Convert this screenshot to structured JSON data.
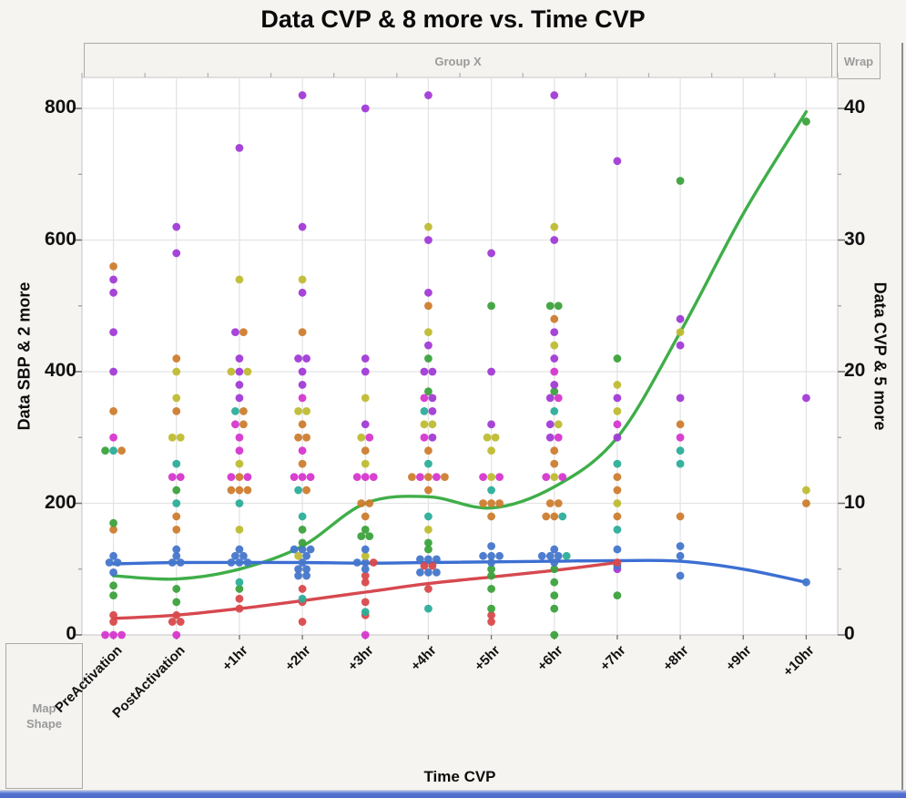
{
  "zones": {
    "group_x": "Group X",
    "wrap": "Wrap",
    "map_shape": "Map Shape"
  },
  "chart_data": {
    "type": "scatter",
    "title": "Data CVP & 8 more vs. Time CVP",
    "x_axis": {
      "label": "Time CVP",
      "categories": [
        "PreActivation",
        "PostActivation",
        "+1hr",
        "+2hr",
        "+3hr",
        "+4hr",
        "+5hr",
        "+6hr",
        "+7hr",
        "+8hr",
        "+9hr",
        "+10hr"
      ]
    },
    "y_left_axis": {
      "label": "Data SBP & 2 more",
      "ticks": [
        0,
        200,
        400,
        600,
        800
      ],
      "minor_ticks": [
        100,
        300,
        500,
        700
      ],
      "range": [
        0,
        856
      ]
    },
    "y_right_axis": {
      "label": "Data CVP & 5 more",
      "ticks": [
        0,
        10,
        20,
        30,
        40
      ],
      "minor_ticks": [
        5,
        15,
        25,
        35
      ],
      "range": [
        0,
        42.8
      ],
      "left_units_per_right_unit": 20
    },
    "grid": "major",
    "legend_position": "none",
    "palette": {
      "blue": "#4476cb",
      "green": "#3ca23c",
      "teal": "#2bae9a",
      "red": "#d9494b",
      "orange": "#ce7d2f",
      "yellow": "#bfbc33",
      "purple": "#a13bd6",
      "magenta": "#d636ce"
    },
    "line_palette": {
      "green": "#3fae49",
      "blue": "#3c6fd2",
      "red": "#d6494f"
    },
    "points_by_category": {
      "PreActivation": [
        [
          "orange",
          560
        ],
        [
          "purple",
          540
        ],
        [
          "purple",
          520
        ],
        [
          "purple",
          460
        ],
        [
          "purple",
          400
        ],
        [
          "orange",
          340
        ],
        [
          "magenta",
          300
        ],
        [
          "green",
          280
        ],
        [
          "teal",
          280
        ],
        [
          "orange",
          280
        ],
        [
          "green",
          170
        ],
        [
          "orange",
          160
        ],
        [
          "blue",
          120
        ],
        [
          "blue",
          110
        ],
        [
          "blue",
          110
        ],
        [
          "blue",
          95
        ],
        [
          "green",
          75
        ],
        [
          "green",
          60
        ],
        [
          "red",
          30
        ],
        [
          "red",
          20
        ],
        [
          "magenta",
          0
        ],
        [
          "magenta",
          0
        ],
        [
          "magenta",
          0
        ]
      ],
      "PostActivation": [
        [
          "purple",
          620
        ],
        [
          "purple",
          580
        ],
        [
          "orange",
          420
        ],
        [
          "yellow",
          400
        ],
        [
          "yellow",
          360
        ],
        [
          "orange",
          340
        ],
        [
          "yellow",
          300
        ],
        [
          "yellow",
          300
        ],
        [
          "teal",
          260
        ],
        [
          "magenta",
          240
        ],
        [
          "magenta",
          240
        ],
        [
          "green",
          220
        ],
        [
          "teal",
          200
        ],
        [
          "orange",
          180
        ],
        [
          "orange",
          160
        ],
        [
          "blue",
          130
        ],
        [
          "blue",
          120
        ],
        [
          "blue",
          110
        ],
        [
          "blue",
          110
        ],
        [
          "green",
          70
        ],
        [
          "green",
          50
        ],
        [
          "red",
          30
        ],
        [
          "red",
          20
        ],
        [
          "red",
          20
        ],
        [
          "magenta",
          0
        ]
      ],
      "+1hr": [
        [
          "purple",
          740
        ],
        [
          "yellow",
          540
        ],
        [
          "purple",
          460
        ],
        [
          "orange",
          460
        ],
        [
          "purple",
          420
        ],
        [
          "yellow",
          400
        ],
        [
          "purple",
          400
        ],
        [
          "yellow",
          400
        ],
        [
          "purple",
          380
        ],
        [
          "purple",
          360
        ],
        [
          "teal",
          340
        ],
        [
          "orange",
          340
        ],
        [
          "magenta",
          320
        ],
        [
          "orange",
          320
        ],
        [
          "magenta",
          300
        ],
        [
          "magenta",
          280
        ],
        [
          "yellow",
          260
        ],
        [
          "magenta",
          240
        ],
        [
          "orange",
          240
        ],
        [
          "magenta",
          240
        ],
        [
          "orange",
          220
        ],
        [
          "orange",
          220
        ],
        [
          "orange",
          220
        ],
        [
          "teal",
          200
        ],
        [
          "yellow",
          160
        ],
        [
          "blue",
          130
        ],
        [
          "blue",
          120
        ],
        [
          "blue",
          120
        ],
        [
          "blue",
          110
        ],
        [
          "blue",
          110
        ],
        [
          "blue",
          110
        ],
        [
          "teal",
          80
        ],
        [
          "green",
          70
        ],
        [
          "red",
          55
        ],
        [
          "red",
          40
        ]
      ],
      "+2hr": [
        [
          "purple",
          820
        ],
        [
          "purple",
          620
        ],
        [
          "yellow",
          540
        ],
        [
          "purple",
          520
        ],
        [
          "orange",
          460
        ],
        [
          "purple",
          420
        ],
        [
          "purple",
          420
        ],
        [
          "purple",
          400
        ],
        [
          "purple",
          380
        ],
        [
          "magenta",
          360
        ],
        [
          "yellow",
          340
        ],
        [
          "yellow",
          340
        ],
        [
          "orange",
          320
        ],
        [
          "orange",
          300
        ],
        [
          "orange",
          300
        ],
        [
          "magenta",
          280
        ],
        [
          "orange",
          260
        ],
        [
          "magenta",
          240
        ],
        [
          "magenta",
          240
        ],
        [
          "magenta",
          240
        ],
        [
          "teal",
          220
        ],
        [
          "orange",
          220
        ],
        [
          "teal",
          180
        ],
        [
          "green",
          160
        ],
        [
          "green",
          140
        ],
        [
          "blue",
          130
        ],
        [
          "blue",
          130
        ],
        [
          "blue",
          130
        ],
        [
          "yellow",
          120
        ],
        [
          "blue",
          120
        ],
        [
          "blue",
          110
        ],
        [
          "blue",
          100
        ],
        [
          "blue",
          100
        ],
        [
          "blue",
          90
        ],
        [
          "blue",
          90
        ],
        [
          "red",
          70
        ],
        [
          "teal",
          55
        ],
        [
          "red",
          50
        ],
        [
          "red",
          20
        ]
      ],
      "+3hr": [
        [
          "purple",
          800
        ],
        [
          "purple",
          420
        ],
        [
          "purple",
          400
        ],
        [
          "yellow",
          360
        ],
        [
          "purple",
          320
        ],
        [
          "yellow",
          300
        ],
        [
          "magenta",
          300
        ],
        [
          "orange",
          280
        ],
        [
          "yellow",
          260
        ],
        [
          "magenta",
          240
        ],
        [
          "magenta",
          240
        ],
        [
          "magenta",
          240
        ],
        [
          "orange",
          200
        ],
        [
          "orange",
          200
        ],
        [
          "orange",
          180
        ],
        [
          "green",
          160
        ],
        [
          "green",
          150
        ],
        [
          "green",
          150
        ],
        [
          "blue",
          130
        ],
        [
          "yellow",
          120
        ],
        [
          "blue",
          110
        ],
        [
          "blue",
          110
        ],
        [
          "red",
          110
        ],
        [
          "blue",
          100
        ],
        [
          "red",
          90
        ],
        [
          "red",
          80
        ],
        [
          "red",
          50
        ],
        [
          "teal",
          35
        ],
        [
          "red",
          30
        ],
        [
          "magenta",
          0
        ]
      ],
      "+4hr": [
        [
          "purple",
          820
        ],
        [
          "yellow",
          620
        ],
        [
          "purple",
          600
        ],
        [
          "purple",
          520
        ],
        [
          "orange",
          500
        ],
        [
          "yellow",
          460
        ],
        [
          "purple",
          440
        ],
        [
          "green",
          420
        ],
        [
          "purple",
          400
        ],
        [
          "purple",
          400
        ],
        [
          "green",
          370
        ],
        [
          "magenta",
          360
        ],
        [
          "purple",
          360
        ],
        [
          "teal",
          340
        ],
        [
          "purple",
          340
        ],
        [
          "yellow",
          320
        ],
        [
          "yellow",
          320
        ],
        [
          "magenta",
          300
        ],
        [
          "purple",
          300
        ],
        [
          "orange",
          280
        ],
        [
          "teal",
          260
        ],
        [
          "orange",
          240
        ],
        [
          "magenta",
          240
        ],
        [
          "orange",
          240
        ],
        [
          "magenta",
          240
        ],
        [
          "orange",
          240
        ],
        [
          "orange",
          220
        ],
        [
          "teal",
          180
        ],
        [
          "yellow",
          160
        ],
        [
          "green",
          140
        ],
        [
          "green",
          130
        ],
        [
          "blue",
          115
        ],
        [
          "blue",
          115
        ],
        [
          "blue",
          115
        ],
        [
          "red",
          105
        ],
        [
          "red",
          105
        ],
        [
          "blue",
          95
        ],
        [
          "blue",
          95
        ],
        [
          "blue",
          95
        ],
        [
          "red",
          70
        ],
        [
          "teal",
          40
        ]
      ],
      "+5hr": [
        [
          "purple",
          580
        ],
        [
          "green",
          500
        ],
        [
          "purple",
          400
        ],
        [
          "purple",
          320
        ],
        [
          "yellow",
          300
        ],
        [
          "yellow",
          300
        ],
        [
          "yellow",
          280
        ],
        [
          "magenta",
          240
        ],
        [
          "yellow",
          240
        ],
        [
          "magenta",
          240
        ],
        [
          "teal",
          220
        ],
        [
          "orange",
          200
        ],
        [
          "orange",
          200
        ],
        [
          "orange",
          200
        ],
        [
          "orange",
          180
        ],
        [
          "blue",
          135
        ],
        [
          "blue",
          120
        ],
        [
          "blue",
          120
        ],
        [
          "blue",
          120
        ],
        [
          "blue",
          110
        ],
        [
          "green",
          100
        ],
        [
          "green",
          90
        ],
        [
          "green",
          70
        ],
        [
          "green",
          40
        ],
        [
          "red",
          30
        ],
        [
          "red",
          20
        ]
      ],
      "+6hr": [
        [
          "purple",
          820
        ],
        [
          "yellow",
          620
        ],
        [
          "purple",
          600
        ],
        [
          "green",
          500
        ],
        [
          "green",
          500
        ],
        [
          "orange",
          480
        ],
        [
          "purple",
          460
        ],
        [
          "yellow",
          440
        ],
        [
          "purple",
          420
        ],
        [
          "magenta",
          400
        ],
        [
          "purple",
          380
        ],
        [
          "green",
          370
        ],
        [
          "purple",
          360
        ],
        [
          "magenta",
          360
        ],
        [
          "teal",
          340
        ],
        [
          "purple",
          320
        ],
        [
          "yellow",
          320
        ],
        [
          "purple",
          300
        ],
        [
          "magenta",
          300
        ],
        [
          "orange",
          280
        ],
        [
          "orange",
          260
        ],
        [
          "magenta",
          240
        ],
        [
          "yellow",
          240
        ],
        [
          "magenta",
          240
        ],
        [
          "orange",
          200
        ],
        [
          "orange",
          200
        ],
        [
          "orange",
          180
        ],
        [
          "orange",
          180
        ],
        [
          "teal",
          180
        ],
        [
          "blue",
          130
        ],
        [
          "blue",
          120
        ],
        [
          "blue",
          120
        ],
        [
          "blue",
          120
        ],
        [
          "teal",
          120
        ],
        [
          "blue",
          110
        ],
        [
          "green",
          100
        ],
        [
          "green",
          80
        ],
        [
          "green",
          60
        ],
        [
          "green",
          40
        ],
        [
          "green",
          0
        ]
      ],
      "+7hr": [
        [
          "purple",
          720
        ],
        [
          "green",
          420
        ],
        [
          "yellow",
          380
        ],
        [
          "purple",
          360
        ],
        [
          "yellow",
          340
        ],
        [
          "magenta",
          320
        ],
        [
          "purple",
          300
        ],
        [
          "teal",
          260
        ],
        [
          "orange",
          240
        ],
        [
          "orange",
          220
        ],
        [
          "yellow",
          200
        ],
        [
          "orange",
          180
        ],
        [
          "teal",
          160
        ],
        [
          "blue",
          130
        ],
        [
          "red",
          110
        ],
        [
          "blue",
          105
        ],
        [
          "purple",
          100
        ],
        [
          "green",
          60
        ]
      ],
      "+8hr": [
        [
          "green",
          690
        ],
        [
          "purple",
          480
        ],
        [
          "yellow",
          460
        ],
        [
          "purple",
          440
        ],
        [
          "purple",
          360
        ],
        [
          "orange",
          320
        ],
        [
          "magenta",
          300
        ],
        [
          "teal",
          280
        ],
        [
          "teal",
          260
        ],
        [
          "orange",
          180
        ],
        [
          "blue",
          135
        ],
        [
          "blue",
          120
        ],
        [
          "blue",
          90
        ]
      ],
      "+9hr": [],
      "+10hr": [
        [
          "green",
          780
        ],
        [
          "purple",
          360
        ],
        [
          "yellow",
          220
        ],
        [
          "orange",
          200
        ],
        [
          "blue",
          80
        ]
      ]
    },
    "smoothers": [
      {
        "color_key": "green",
        "start_index": 0,
        "values": [
          90,
          85,
          100,
          135,
          200,
          210,
          193,
          225,
          300,
          460,
          640,
          795
        ]
      },
      {
        "color_key": "blue",
        "start_index": 0,
        "values": [
          108,
          110,
          110,
          110,
          109,
          110,
          111,
          112,
          113,
          112,
          100,
          80
        ]
      },
      {
        "color_key": "red",
        "start_index": 0,
        "values": [
          25,
          30,
          40,
          52,
          65,
          78,
          88,
          98,
          110
        ]
      }
    ]
  }
}
